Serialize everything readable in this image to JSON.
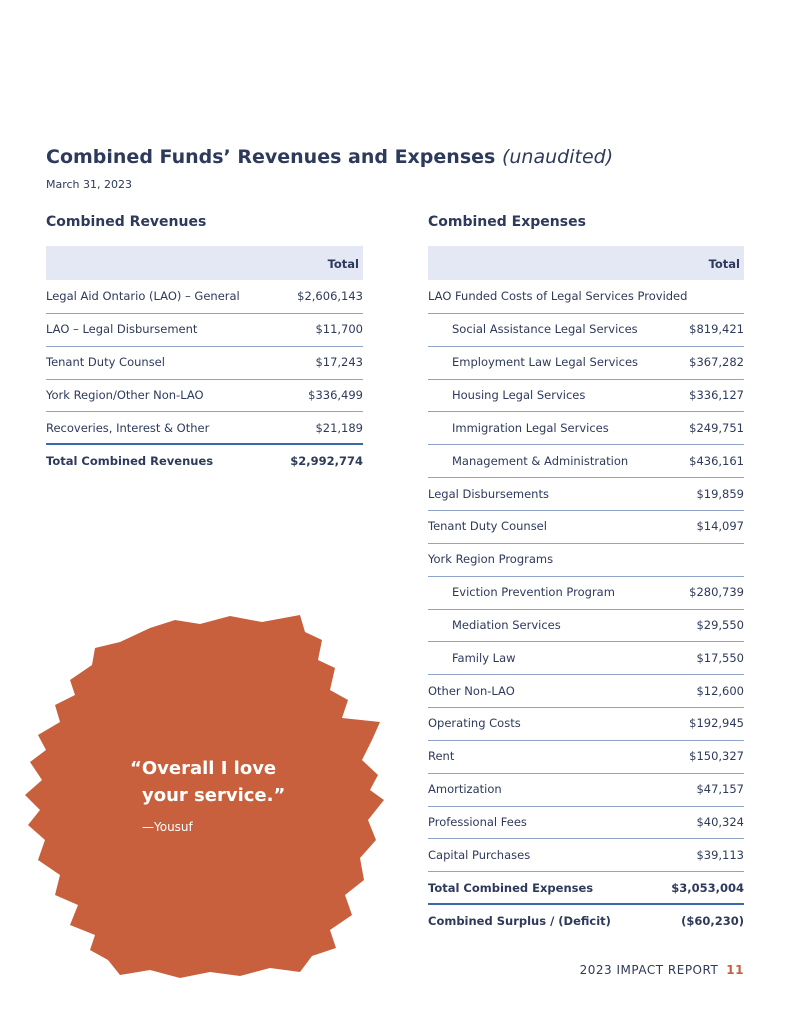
{
  "title": "Combined Funds’ Revenues and Expenses",
  "title_note": "(unaudited)",
  "date": "March 31, 2023",
  "revenues": {
    "heading": "Combined Revenues",
    "column": "Total",
    "rows": [
      {
        "label": "Legal Aid Ontario (LAO) – General",
        "value": "$2,606,143"
      },
      {
        "label": "LAO – Legal Disbursement",
        "value": "$11,700"
      },
      {
        "label": "Tenant Duty Counsel",
        "value": "$17,243"
      },
      {
        "label": "York Region/Other Non-LAO",
        "value": "$336,499"
      },
      {
        "label": "Recoveries, Interest & Other",
        "value": "$21,189"
      }
    ],
    "total": {
      "label": "Total Combined Revenues",
      "value": "$2,992,774"
    }
  },
  "expenses": {
    "heading": "Combined Expenses",
    "column": "Total",
    "rows": [
      {
        "label": "LAO Funded Costs of Legal Services Provided"
      },
      {
        "label": "Social Assistance Legal Services",
        "value": "$819,421",
        "indent": true
      },
      {
        "label": "Employment Law Legal Services",
        "value": "$367,282",
        "indent": true
      },
      {
        "label": "Housing Legal Services",
        "value": "$336,127",
        "indent": true
      },
      {
        "label": "Immigration Legal Services",
        "value": "$249,751",
        "indent": true
      },
      {
        "label": "Management & Administration",
        "value": "$436,161",
        "indent": true
      },
      {
        "label": "Legal Disbursements",
        "value": "$19,859"
      },
      {
        "label": "Tenant Duty Counsel",
        "value": "$14,097"
      },
      {
        "label": "York Region Programs"
      },
      {
        "label": "Eviction Prevention Program",
        "value": "$280,739",
        "indent": true
      },
      {
        "label": "Mediation Services",
        "value": "$29,550",
        "indent": true
      },
      {
        "label": "Family Law",
        "value": "$17,550",
        "indent": true
      },
      {
        "label": "Other Non-LAO",
        "value": "$12,600"
      },
      {
        "label": "Operating Costs",
        "value": "$192,945"
      },
      {
        "label": "Rent",
        "value": "$150,327"
      },
      {
        "label": "Amortization",
        "value": "$47,157"
      },
      {
        "label": "Professional Fees",
        "value": "$40,324"
      },
      {
        "label": "Capital Purchases",
        "value": "$39,113"
      }
    ],
    "total": {
      "label": "Total Combined Expenses",
      "value": "$3,053,004"
    },
    "surplus": {
      "label": "Combined Surplus / (Deficit)",
      "value": "($60,230)"
    }
  },
  "quote": {
    "lines": [
      "“Overall I love",
      "your service.”"
    ],
    "attribution": "—Yousuf"
  },
  "footer": {
    "report": "2023 IMPACT REPORT",
    "page": "11"
  }
}
